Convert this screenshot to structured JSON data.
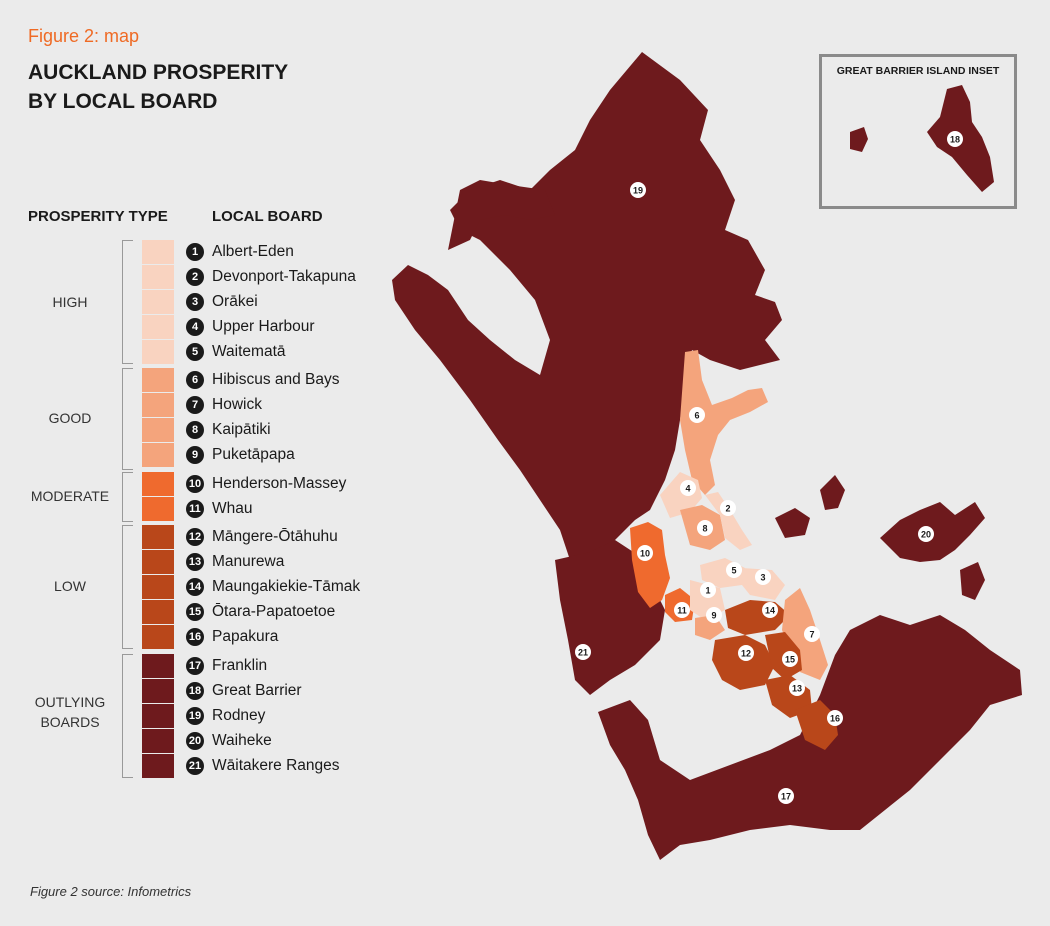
{
  "figure_label": "Figure 2: map",
  "title_lines": [
    "AUCKLAND PROSPERITY",
    "BY LOCAL BOARD"
  ],
  "legend": {
    "type_header": "PROSPERITY TYPE",
    "board_header": "LOCAL BOARD",
    "groups": [
      {
        "label": "HIGH",
        "color": "#f9d3c0"
      },
      {
        "label": "GOOD",
        "color": "#f4a47c"
      },
      {
        "label": "MODERATE",
        "color": "#ef6a2e"
      },
      {
        "label": "LOW",
        "color": "#b9471a"
      },
      {
        "label": "OUTLYING BOARDS",
        "color": "#6e1a1d"
      }
    ],
    "boards": [
      {
        "num": "1",
        "name": "Albert-Eden",
        "group": 0
      },
      {
        "num": "2",
        "name": "Devonport-Takapuna",
        "group": 0
      },
      {
        "num": "3",
        "name": "Orākei",
        "group": 0
      },
      {
        "num": "4",
        "name": "Upper Harbour",
        "group": 0
      },
      {
        "num": "5",
        "name": "Waitematā",
        "group": 0
      },
      {
        "num": "6",
        "name": "Hibiscus and Bays",
        "group": 1
      },
      {
        "num": "7",
        "name": "Howick",
        "group": 1
      },
      {
        "num": "8",
        "name": "Kaipātiki",
        "group": 1
      },
      {
        "num": "9",
        "name": "Puketāpapa",
        "group": 1
      },
      {
        "num": "10",
        "name": "Henderson-Massey",
        "group": 2
      },
      {
        "num": "11",
        "name": "Whau",
        "group": 2
      },
      {
        "num": "12",
        "name": "Māngere-Ōtāhuhu",
        "group": 3
      },
      {
        "num": "13",
        "name": "Manurewa",
        "group": 3
      },
      {
        "num": "14",
        "name": "Maungakiekie-Tāmak",
        "group": 3
      },
      {
        "num": "15",
        "name": "Ōtara-Papatoetoe",
        "group": 3
      },
      {
        "num": "16",
        "name": "Papakura",
        "group": 3
      },
      {
        "num": "17",
        "name": "Franklin",
        "group": 4
      },
      {
        "num": "18",
        "name": "Great Barrier",
        "group": 4
      },
      {
        "num": "19",
        "name": "Rodney",
        "group": 4
      },
      {
        "num": "20",
        "name": "Waiheke",
        "group": 4
      },
      {
        "num": "21",
        "name": "Wāitakere Ranges",
        "group": 4
      }
    ]
  },
  "inset_title": "GREAT BARRIER ISLAND INSET",
  "source": "Figure 2 source: Infometrics"
}
